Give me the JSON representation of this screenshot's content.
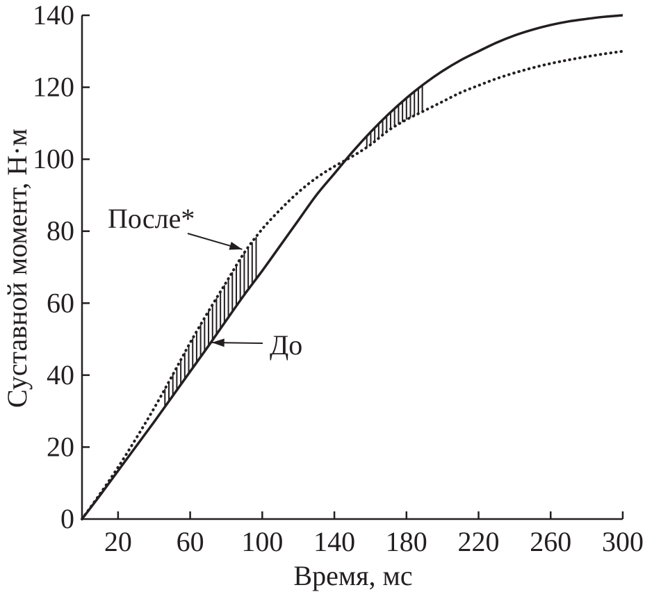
{
  "chart_data": {
    "type": "line",
    "xlabel": "Время, мс",
    "ylabel": "Суставной момент, Н·м",
    "xlim": [
      0,
      300
    ],
    "ylim": [
      0,
      140
    ],
    "xticks": [
      20,
      60,
      100,
      140,
      180,
      220,
      260,
      300
    ],
    "yticks": [
      0,
      20,
      40,
      60,
      80,
      100,
      120,
      140
    ],
    "grid": false,
    "series": [
      {
        "name": "До",
        "style": "solid",
        "x": [
          0,
          10,
          20,
          30,
          40,
          50,
          60,
          70,
          80,
          90,
          100,
          110,
          120,
          130,
          140,
          150,
          160,
          170,
          180,
          190,
          200,
          210,
          220,
          230,
          240,
          250,
          260,
          270,
          280,
          290,
          300
        ],
        "y": [
          0,
          6.6,
          13.4,
          20.2,
          27.0,
          34.0,
          41.0,
          48.0,
          55.2,
          62.3,
          69.0,
          76.0,
          83.0,
          90.0,
          96.0,
          102.0,
          107.5,
          112.5,
          117.0,
          121.0,
          124.5,
          127.5,
          130.0,
          132.4,
          134.4,
          136.0,
          137.3,
          138.3,
          139.0,
          139.6,
          140.0
        ]
      },
      {
        "name": "После*",
        "style": "dotted",
        "x": [
          0,
          10,
          20,
          30,
          40,
          50,
          60,
          70,
          80,
          90,
          100,
          110,
          120,
          130,
          140,
          150,
          160,
          170,
          180,
          190,
          200,
          210,
          220,
          230,
          240,
          250,
          260,
          270,
          280,
          290,
          300
        ],
        "y": [
          0,
          7.0,
          14.4,
          22.4,
          30.8,
          39.8,
          49.0,
          57.6,
          65.8,
          74.0,
          80.6,
          86.0,
          90.8,
          94.8,
          98.0,
          100.8,
          104.0,
          108.0,
          111.0,
          113.5,
          116.0,
          118.5,
          120.5,
          122.4,
          124.0,
          125.4,
          126.6,
          127.6,
          128.5,
          129.3,
          130.0
        ]
      }
    ],
    "shaded_regions": [
      {
        "x_from": 46,
        "x_to": 98
      },
      {
        "x_from": 158,
        "x_to": 190
      }
    ],
    "annotations": [
      {
        "text": "После*",
        "target_series": "После*",
        "target_x": 90
      },
      {
        "text": "До",
        "target_series": "До",
        "target_x": 72
      }
    ]
  }
}
